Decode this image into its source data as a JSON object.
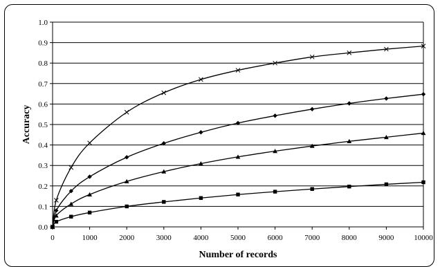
{
  "chart_data": {
    "type": "line",
    "xlabel": "Number of records",
    "ylabel": "Accuracy",
    "xlim": [
      0,
      10000
    ],
    "ylim": [
      0,
      1.0
    ],
    "x_ticks": [
      0,
      1000,
      2000,
      3000,
      4000,
      5000,
      6000,
      7000,
      8000,
      9000,
      10000
    ],
    "x_tick_labels": [
      "0",
      "1000",
      "2000",
      "3000",
      "4000",
      "5000",
      "6000",
      "7000",
      "8000",
      "9000",
      "10000"
    ],
    "y_ticks": [
      0,
      0.1,
      0.2,
      0.3,
      0.4,
      0.5,
      0.6,
      0.7,
      0.8,
      0.9,
      1.0
    ],
    "y_tick_labels": [
      "0.0",
      "0.1",
      "0.2",
      "0.3",
      "0.4",
      "0.5",
      "0.6",
      "0.7",
      "0.8",
      "0.9",
      "1.0"
    ],
    "grid": "horizontal",
    "x": [
      0,
      100,
      500,
      1000,
      2000,
      3000,
      4000,
      5000,
      6000,
      7000,
      8000,
      9000,
      10000
    ],
    "series": [
      {
        "marker": "cross",
        "values": [
          0.0,
          0.13,
          0.29,
          0.41,
          0.56,
          0.655,
          0.72,
          0.765,
          0.8,
          0.83,
          0.85,
          0.868,
          0.883
        ]
      },
      {
        "marker": "diamond",
        "values": [
          0.0,
          0.08,
          0.175,
          0.245,
          0.34,
          0.408,
          0.462,
          0.507,
          0.543,
          0.575,
          0.603,
          0.627,
          0.648
        ]
      },
      {
        "marker": "triangle",
        "values": [
          0.0,
          0.055,
          0.112,
          0.158,
          0.222,
          0.27,
          0.309,
          0.342,
          0.37,
          0.395,
          0.418,
          0.438,
          0.458
        ]
      },
      {
        "marker": "square",
        "values": [
          0.0,
          0.025,
          0.05,
          0.07,
          0.1,
          0.122,
          0.141,
          0.158,
          0.172,
          0.185,
          0.197,
          0.208,
          0.218
        ]
      }
    ],
    "colors": {
      "line": "#000000",
      "grid": "#000000",
      "background": "#ffffff"
    }
  }
}
